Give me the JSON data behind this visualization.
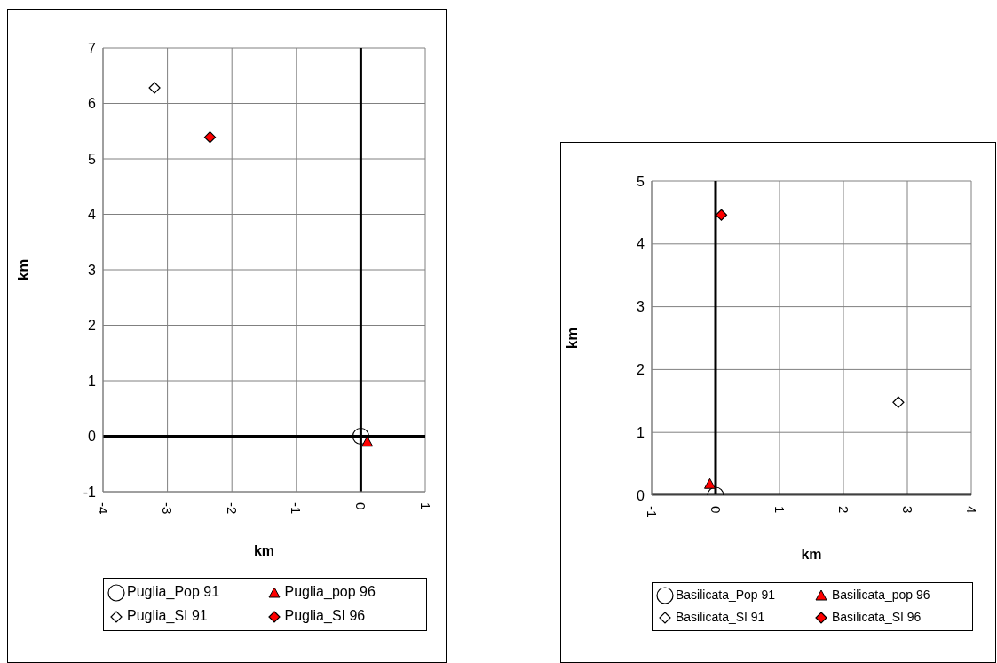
{
  "chart_data": [
    {
      "type": "scatter",
      "xlabel": "km",
      "ylabel": "km",
      "xlim": [
        -4,
        1
      ],
      "xticks": [
        -4,
        -3,
        -2,
        -1,
        0,
        1
      ],
      "ylim": [
        -1,
        7
      ],
      "yticks": [
        -1,
        0,
        1,
        2,
        3,
        4,
        5,
        6,
        7
      ],
      "grid": true,
      "legend": "bottom",
      "series": [
        {
          "name": "Puglia_Pop 91",
          "color": "#000000",
          "marker": "circle",
          "x": [
            0
          ],
          "values": [
            0
          ]
        },
        {
          "name": "Puglia_pop 96",
          "color": "#ff0000",
          "marker": "triangle",
          "x": [
            0.1
          ],
          "values": [
            -0.1
          ]
        },
        {
          "name": "Puglia_SI 91",
          "color": "#ffffff",
          "marker": "diamond",
          "x": [
            -3.2
          ],
          "values": [
            6.28
          ]
        },
        {
          "name": "Puglia_SI 96",
          "color": "#ff0000",
          "marker": "diamond",
          "x": [
            -2.34
          ],
          "values": [
            5.39
          ]
        }
      ]
    },
    {
      "type": "scatter",
      "xlabel": "km",
      "ylabel": "km",
      "xlim": [
        -1,
        4
      ],
      "xticks": [
        -1,
        0,
        1,
        2,
        3,
        4
      ],
      "ylim": [
        0,
        5
      ],
      "yticks": [
        0,
        1,
        2,
        3,
        4,
        5
      ],
      "grid": true,
      "legend": "bottom",
      "series": [
        {
          "name": "Basilicata_Pop 91",
          "color": "#000000",
          "marker": "circle",
          "x": [
            0
          ],
          "values": [
            0
          ]
        },
        {
          "name": "Basilicata_pop 96",
          "color": "#ff0000",
          "marker": "triangle",
          "x": [
            -0.09
          ],
          "values": [
            0.18
          ]
        },
        {
          "name": "Basilicata_SI 91",
          "color": "#ffffff",
          "marker": "diamond",
          "x": [
            2.86
          ],
          "values": [
            1.48
          ]
        },
        {
          "name": "Basilicata_SI 96",
          "color": "#ff0000",
          "marker": "diamond",
          "x": [
            0.09
          ],
          "values": [
            4.46
          ]
        }
      ]
    }
  ]
}
